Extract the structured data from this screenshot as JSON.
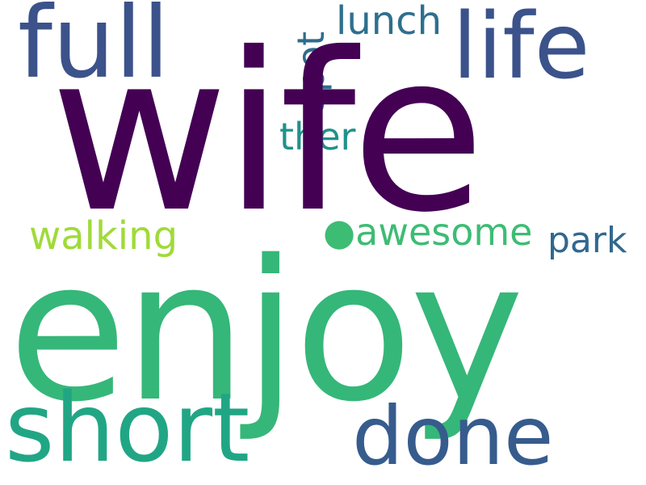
{
  "word_cloud": {
    "words": [
      {
        "text": "wife",
        "color": "#440154"
      },
      {
        "text": "enjoy",
        "color": "#35b779"
      },
      {
        "text": "full",
        "color": "#3b528b"
      },
      {
        "text": "life",
        "color": "#3b528b"
      },
      {
        "text": "short",
        "color": "#21a685"
      },
      {
        "text": "done",
        "color": "#365c8d"
      },
      {
        "text": "lunch",
        "color": "#2e6f8e"
      },
      {
        "text": "spot",
        "color": "#2f6b8e"
      },
      {
        "text": "ther",
        "color": "#21918c"
      },
      {
        "text": "walking",
        "color": "#a0da39"
      },
      {
        "text": "●awesome",
        "color": "#3dbc74"
      },
      {
        "text": "park",
        "color": "#31688e"
      }
    ]
  }
}
